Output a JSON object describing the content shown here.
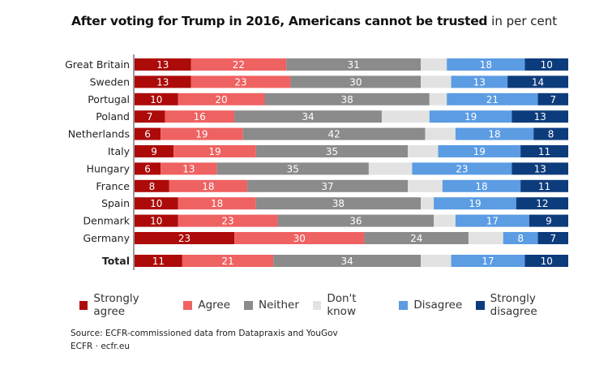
{
  "chart_data": {
    "type": "bar",
    "orientation": "horizontal",
    "stacked": true,
    "title": "After voting for Trump in 2016, Americans cannot be trusted",
    "subtitle": "in per cent",
    "categories": [
      "Great Britain",
      "Sweden",
      "Portugal",
      "Poland",
      "Netherlands",
      "Italy",
      "Hungary",
      "France",
      "Spain",
      "Denmark",
      "Germany",
      "Total"
    ],
    "xlim": [
      0,
      100
    ],
    "grid": false,
    "legend_position": "bottom",
    "series": [
      {
        "name": "Strongly agree",
        "color": "#ad0a0a",
        "values": [
          13,
          13,
          10,
          7,
          6,
          9,
          6,
          8,
          10,
          10,
          23,
          11
        ]
      },
      {
        "name": "Agree",
        "color": "#ef6262",
        "values": [
          22,
          23,
          20,
          16,
          19,
          19,
          13,
          18,
          18,
          23,
          30,
          21
        ]
      },
      {
        "name": "Neither",
        "color": "#8b8b8b",
        "values": [
          31,
          30,
          38,
          34,
          42,
          35,
          35,
          37,
          38,
          36,
          24,
          34
        ]
      },
      {
        "name": "Don't know",
        "color": "#e2e2e2",
        "values": [
          6,
          7,
          4,
          11,
          7,
          7,
          10,
          8,
          3,
          5,
          8,
          7
        ],
        "labeled": false
      },
      {
        "name": "Disagree",
        "color": "#5b9ce3",
        "values": [
          18,
          13,
          21,
          19,
          18,
          19,
          23,
          18,
          19,
          17,
          8,
          17
        ]
      },
      {
        "name": "Strongly disagree",
        "color": "#0d3c7c",
        "values": [
          10,
          14,
          7,
          13,
          8,
          11,
          13,
          11,
          12,
          9,
          7,
          10
        ]
      }
    ]
  },
  "source": "Source: ECFR-commissioned data from Datapraxis and YouGov",
  "credit": "ECFR · ecfr.eu"
}
